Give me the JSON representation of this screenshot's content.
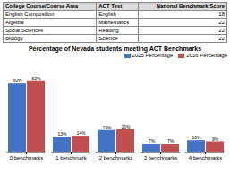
{
  "chart_data": [
    {
      "type": "table",
      "headers": [
        "College Course/Course Area",
        "ACT Test",
        "National Benchmark Score"
      ],
      "rows": [
        [
          "English Composition",
          "English",
          "18"
        ],
        [
          "Algebra",
          "Mathematics",
          "22"
        ],
        [
          "Social Sciences",
          "Reading",
          "22"
        ],
        [
          "Biology",
          "Science",
          "22"
        ]
      ]
    },
    {
      "type": "bar",
      "title": "Percentage of Nevada students meeting ACT Benchmarks",
      "categories": [
        "0 benchmarks",
        "1 benchmark",
        "2 benchmarks",
        "3 benchmarks",
        "4 benchmarks"
      ],
      "series": [
        {
          "name": "2025 Percentage",
          "color": "#4472C4",
          "values": [
            60,
            13,
            19,
            7,
            10
          ],
          "value_labels": [
            "60%",
            "13%",
            "19%",
            "7%",
            "10%"
          ]
        },
        {
          "name": "2016 Percentage",
          "color": "#C0504D",
          "values": [
            62,
            14,
            20,
            7,
            9
          ],
          "value_labels": [
            "62%",
            "14%",
            "20%",
            "7%",
            "9%"
          ]
        }
      ],
      "ylim": [
        0,
        75
      ],
      "data_labels": true,
      "legend": "upper right",
      "tick_labels": "x",
      "grid": false
    }
  ]
}
